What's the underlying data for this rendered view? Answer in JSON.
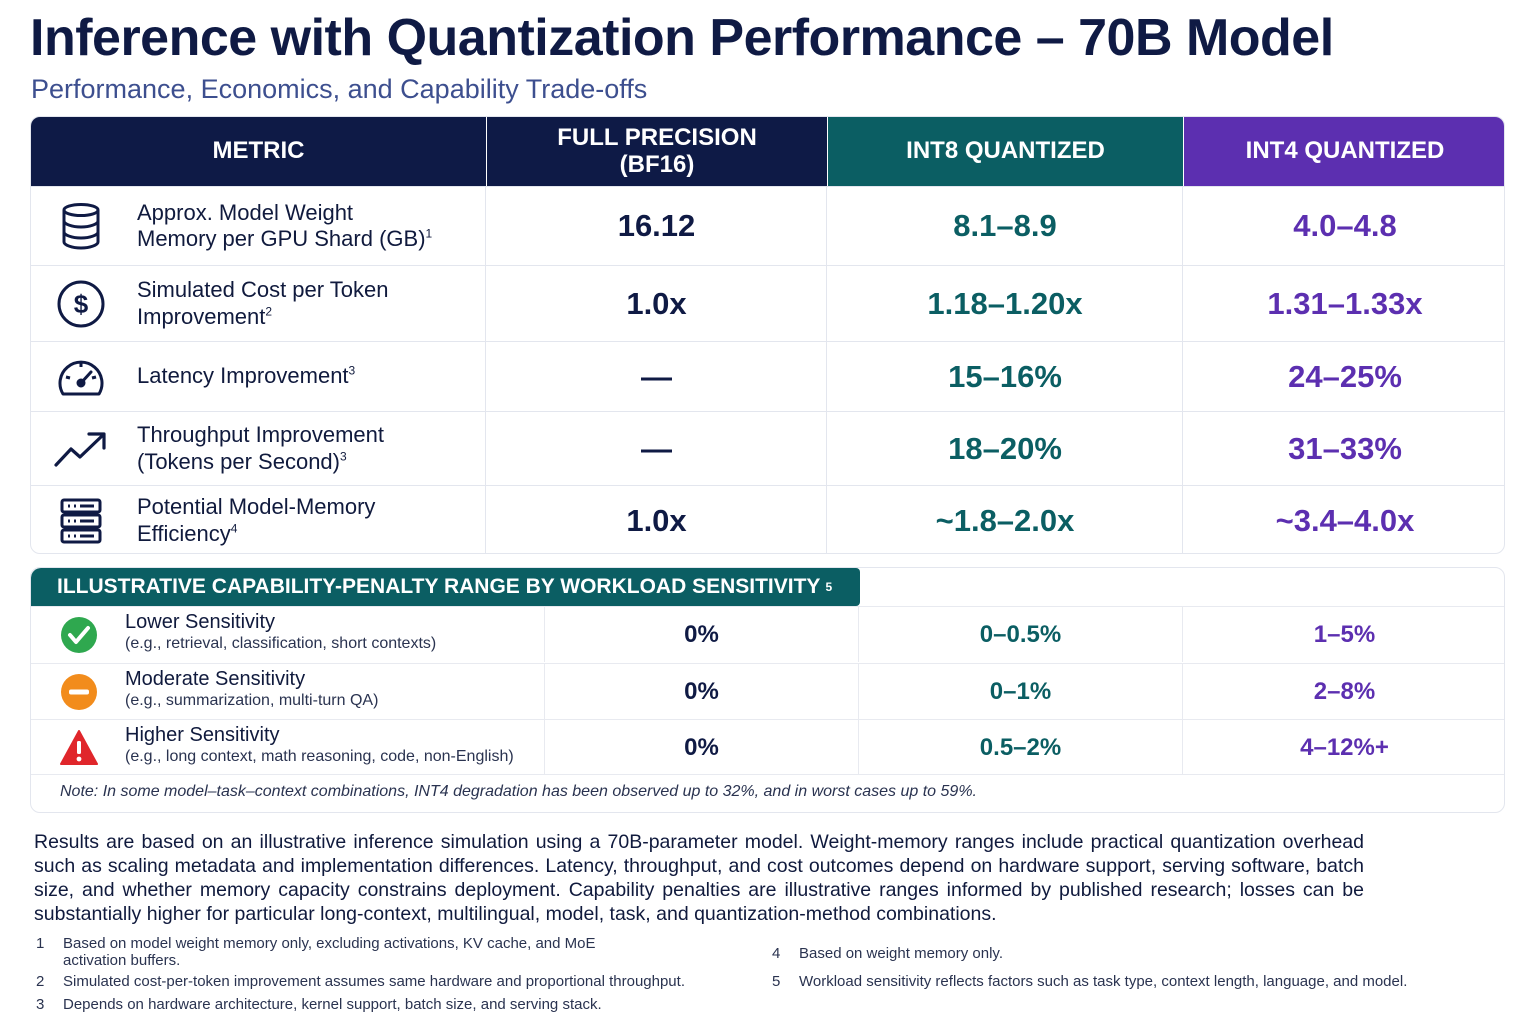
{
  "title": "Inference with Quantization Performance – 70B Model",
  "subtitle": "Performance, Economics, and Capability Trade-offs",
  "table": {
    "headers": {
      "metric": "METRIC",
      "full_line1": "FULL PRECISION",
      "full_line2": "(BF16)",
      "int8": "INT8 QUANTIZED",
      "int4": "INT4 QUANTIZED"
    },
    "colors": {
      "navy": "#0e1a46",
      "teal": "#0b5e63",
      "purple": "#5c2fb0"
    },
    "rows": [
      {
        "icon": "database-icon",
        "label_line1": "Approx. Model Weight",
        "label_line2": "Memory per GPU Shard (GB)",
        "note": "1",
        "full": "16.12",
        "int8": "8.1–8.9",
        "int4": "4.0–4.8"
      },
      {
        "icon": "dollar-icon",
        "label_line1": "Simulated Cost per Token",
        "label_line2": "Improvement",
        "note": "2",
        "full": "1.0x",
        "int8": "1.18–1.20x",
        "int4": "1.31–1.33x"
      },
      {
        "icon": "speedometer-icon",
        "label_line1": "Latency Improvement",
        "label_line2": "",
        "note": "3",
        "full": "—",
        "int8": "15–16%",
        "int4": "24–25%"
      },
      {
        "icon": "trending-up-icon",
        "label_line1": "Throughput Improvement",
        "label_line2": "(Tokens per Second)",
        "note": "3",
        "full": "—",
        "int8": "18–20%",
        "int4": "31–33%"
      },
      {
        "icon": "server-icon",
        "label_line1": "Potential Model-Memory",
        "label_line2": "Efficiency",
        "note": "4",
        "full": "1.0x",
        "int8": "~1.8–2.0x",
        "int4": "~3.4–4.0x"
      }
    ]
  },
  "capability": {
    "header": "ILLUSTRATIVE CAPABILITY-PENALTY RANGE BY WORKLOAD SENSITIVITY",
    "header_note": "5",
    "rows": [
      {
        "icon": "check-circle-icon",
        "color": "#2fa84f",
        "name": "Lower Sensitivity",
        "desc": "(e.g., retrieval, classification, short contexts)",
        "full": "0%",
        "int8": "0–0.5%",
        "int4": "1–5%"
      },
      {
        "icon": "minus-circle-icon",
        "color": "#f28c1c",
        "name": "Moderate Sensitivity",
        "desc": "(e.g., summarization, multi-turn QA)",
        "full": "0%",
        "int8": "0–1%",
        "int4": "2–8%"
      },
      {
        "icon": "warning-triangle-icon",
        "color": "#e0262b",
        "name": "Higher Sensitivity",
        "desc": "(e.g., long context, math reasoning, code, non-English)",
        "full": "0%",
        "int8": "0.5–2%",
        "int4": "4–12%+"
      }
    ],
    "note": "Note: In some model–task–context combinations, INT4 degradation has been observed up to 32%, and in worst cases up to 59%."
  },
  "summary": "Results are based on an illustrative inference simulation using a 70B-parameter model. Weight-memory ranges include practical quantization overhead such as scaling metadata and implementation differences. Latency, throughput, and cost outcomes depend on hardware support, serving software, batch size, and whether memory capacity constrains deployment. Capability penalties are illustrative ranges informed by published research; losses can be substantially higher for particular long-context, multilingual, model, task, and quantization-method combinations.",
  "footnotes": [
    {
      "num": "1",
      "text": "Based on model weight memory only, excluding activations, KV cache, and MoE activation buffers."
    },
    {
      "num": "2",
      "text": "Simulated cost-per-token improvement assumes same hardware and proportional throughput."
    },
    {
      "num": "3",
      "text": "Depends on hardware architecture, kernel support, batch size, and serving stack."
    },
    {
      "num": "4",
      "text": "Based on weight memory only."
    },
    {
      "num": "5",
      "text": "Workload sensitivity reflects factors such as task type, context length, language, and model."
    }
  ]
}
